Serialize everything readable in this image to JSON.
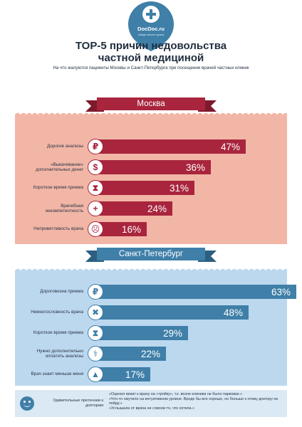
{
  "brand": {
    "name": "DocDoc.ru",
    "tagline": "найди своего врача"
  },
  "header": {
    "title_line1": "ТОР-5 причин недовольства",
    "title_line2": "частной медициной",
    "subtitle": "На что жалуются пациенты Москвы и Санкт-Петербурга при посещении врачей частных клиник"
  },
  "colors": {
    "moscow_accent": "#a8253d",
    "moscow_panel": "#f2b6a6",
    "spb_accent": "#3f7fa8",
    "spb_panel": "#bcd8ef"
  },
  "chart_data": [
    {
      "type": "bar",
      "title": "Москва",
      "categories": [
        "Дорогие анализы",
        "«Выкачивание» дополнительных денег",
        "Короткое время приема",
        "Врачебная некомпетентность",
        "Неприветливость врача"
      ],
      "values": [
        47,
        36,
        31,
        24,
        16
      ],
      "value_labels": [
        "47%",
        "36%",
        "31%",
        "24%",
        "16%"
      ],
      "icons": [
        "ruble-icon",
        "money-bag-icon",
        "hourglass-icon",
        "doctor-icon",
        "angry-face-icon"
      ],
      "ylim": [
        0,
        63
      ],
      "grid": false,
      "legend": "none",
      "orientation": "horizontal"
    },
    {
      "type": "bar",
      "title": "Санкт-Петербург",
      "categories": [
        "Дороговизна приема",
        "Немногословность врача",
        "Короткое время приема",
        "Нужно дополнительно оплатить анализы",
        "Врач знает меньше меня"
      ],
      "values": [
        63,
        48,
        29,
        22,
        17
      ],
      "value_labels": [
        "63%",
        "48%",
        "29%",
        "22%",
        "17%"
      ],
      "icons": [
        "ruble-icon",
        "zipped-mouth-icon",
        "hourglass-icon",
        "microscope-icon",
        "graduation-cap-icon"
      ],
      "ylim": [
        0,
        63
      ],
      "grid": false,
      "legend": "none",
      "orientation": "horizontal"
    }
  ],
  "footer": {
    "label": "Удивительные претензии к докторам",
    "quotes": [
      "«Оценил визит к врачу на «тройку», т.к. возле клиники не было парковки.»",
      "«Что-то смутило на интуитивном уровне. Вроде бы все хорошо, но больше к этому доктору не пойду.»",
      "«Услышала от врача не совсем то, что хотела.»"
    ]
  }
}
